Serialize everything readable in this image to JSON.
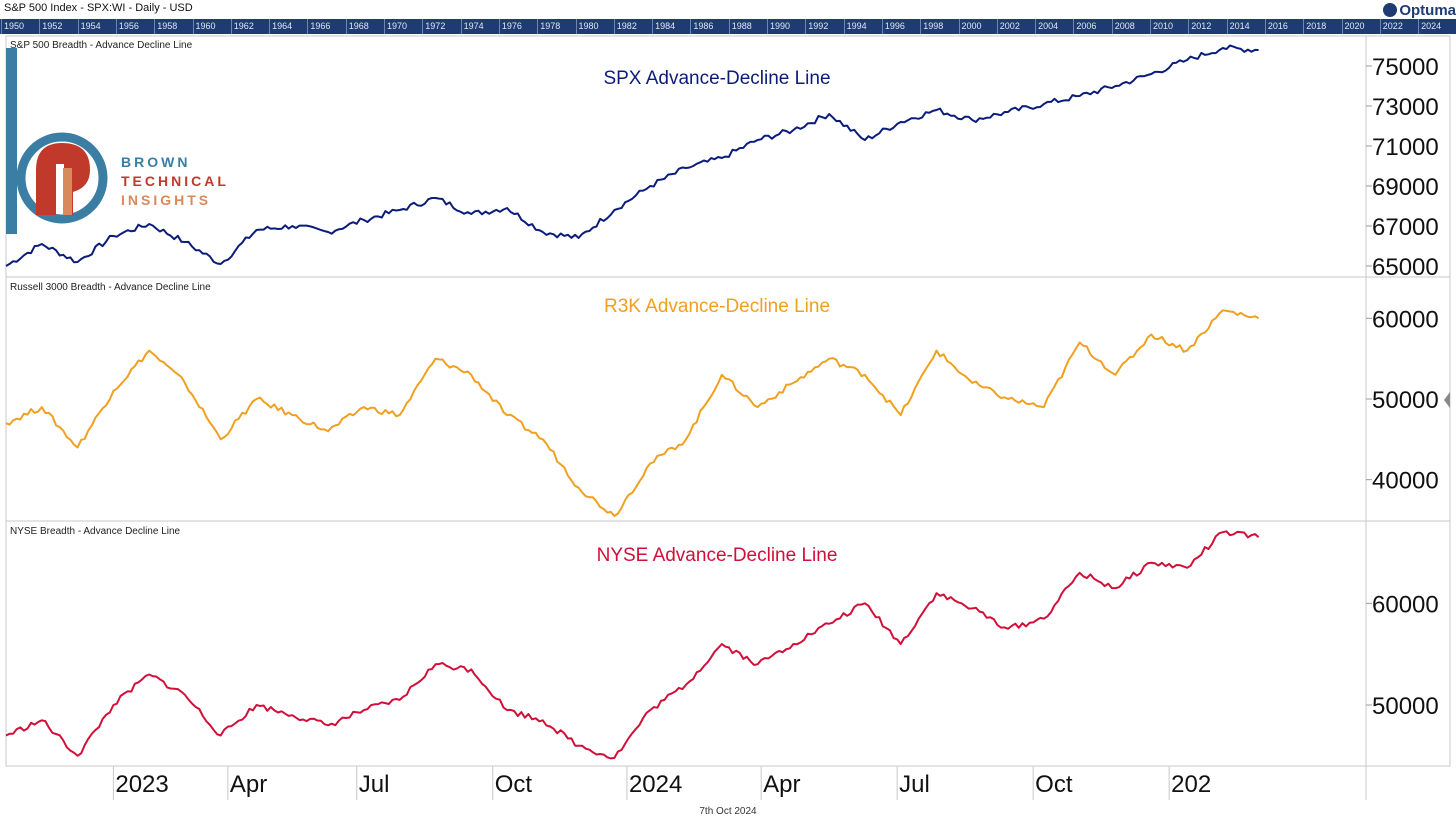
{
  "header": {
    "title": "S&P 500 Index - SPX:WI - Daily - USD",
    "brand": "Optuma",
    "timeline_years": [
      "1950",
      "1952",
      "1954",
      "1956",
      "1958",
      "1960",
      "1962",
      "1964",
      "1966",
      "1968",
      "1970",
      "1972",
      "1974",
      "1976",
      "1978",
      "1980",
      "1982",
      "1984",
      "1986",
      "1988",
      "1990",
      "1992",
      "1994",
      "1996",
      "1998",
      "2000",
      "2002",
      "2004",
      "2006",
      "2008",
      "2010",
      "2012",
      "2014",
      "2016",
      "2018",
      "2020",
      "2022",
      "2024"
    ]
  },
  "logo": {
    "line1": "BROWN",
    "line2": "TECHNICAL",
    "line3": "INSIGHTS",
    "colors": {
      "blue": "#3b7ea4",
      "red": "#c0392b",
      "orange": "#d98a5a"
    }
  },
  "footer": {
    "date": "7th Oct 2024"
  },
  "chart_data": [
    {
      "type": "line",
      "panel_label": "S&P 500 Breadth - Advance Decline Line",
      "title": "SPX Advance-Decline Line",
      "color": "#0b1c7a",
      "ylim": [
        64500,
        76500
      ],
      "yticks": [
        65000,
        67000,
        69000,
        71000,
        73000,
        75000
      ],
      "x": [
        0,
        20,
        40,
        60,
        80,
        100,
        120,
        140,
        160,
        180,
        200,
        220,
        240,
        260,
        280,
        300,
        320,
        340,
        360,
        380,
        400,
        420,
        440,
        460,
        480,
        500,
        520,
        540,
        560,
        580,
        600,
        620,
        640,
        660,
        680,
        700
      ],
      "series": [
        {
          "values": [
            65000,
            66100,
            65200,
            66500,
            67100,
            66200,
            65100,
            66800,
            67000,
            66700,
            67300,
            67800,
            68400,
            67600,
            67900,
            66700,
            66400,
            67800,
            69000,
            69900,
            70400,
            71300,
            71800,
            72600,
            71300,
            72200,
            72800,
            72300,
            72700,
            73100,
            73500,
            74000,
            74600,
            75300,
            75900,
            75800
          ]
        }
      ]
    },
    {
      "type": "line",
      "panel_label": "Russell 3000 Breadth - Advance Decline Line",
      "title": "R3K Advance-Decline Line",
      "color": "#f0a020",
      "ylim": [
        35000,
        65000
      ],
      "yticks": [
        40000,
        50000,
        60000
      ],
      "x": [
        0,
        20,
        40,
        60,
        80,
        100,
        120,
        140,
        160,
        180,
        200,
        220,
        240,
        260,
        280,
        300,
        320,
        340,
        360,
        380,
        400,
        420,
        440,
        460,
        480,
        500,
        520,
        540,
        560,
        580,
        600,
        620,
        640,
        660,
        680,
        700
      ],
      "series": [
        {
          "values": [
            47000,
            49000,
            44000,
            51000,
            56000,
            52000,
            45000,
            50000,
            48000,
            46000,
            49000,
            48000,
            55000,
            53000,
            48000,
            45000,
            39000,
            35500,
            42000,
            45000,
            53000,
            49000,
            52000,
            55000,
            53000,
            48000,
            56000,
            52000,
            50000,
            49000,
            57000,
            53000,
            58000,
            56000,
            61000,
            60000
          ]
        }
      ]
    },
    {
      "type": "line",
      "panel_label": "NYSE Breadth - Advance Decline Line",
      "title": "NYSE Advance-Decline Line",
      "color": "#d0103a",
      "ylim": [
        44000,
        68000
      ],
      "yticks": [
        50000,
        60000
      ],
      "x": [
        0,
        20,
        40,
        60,
        80,
        100,
        120,
        140,
        160,
        180,
        200,
        220,
        240,
        260,
        280,
        300,
        320,
        340,
        360,
        380,
        400,
        420,
        440,
        460,
        480,
        500,
        520,
        540,
        560,
        580,
        600,
        620,
        640,
        660,
        680,
        700
      ],
      "series": [
        {
          "values": [
            47000,
            48500,
            45000,
            50000,
            53000,
            51000,
            47000,
            50000,
            49000,
            48000,
            49500,
            50500,
            54000,
            53500,
            49500,
            48500,
            46000,
            44800,
            49500,
            52000,
            56000,
            54000,
            56000,
            58000,
            60000,
            56000,
            61000,
            59500,
            57500,
            58500,
            63000,
            61500,
            64000,
            63500,
            67000,
            66500
          ]
        }
      ]
    }
  ],
  "x_axis": {
    "x_range": [
      0,
      760
    ],
    "ticks": [
      {
        "label": "2023",
        "x": 60
      },
      {
        "label": "Apr",
        "x": 124
      },
      {
        "label": "Jul",
        "x": 196
      },
      {
        "label": "Oct",
        "x": 272
      },
      {
        "label": "2024",
        "x": 347
      },
      {
        "label": "Apr",
        "x": 422
      },
      {
        "label": "Jul",
        "x": 498
      },
      {
        "label": "Oct",
        "x": 574
      },
      {
        "label": "202",
        "x": 650
      }
    ]
  }
}
